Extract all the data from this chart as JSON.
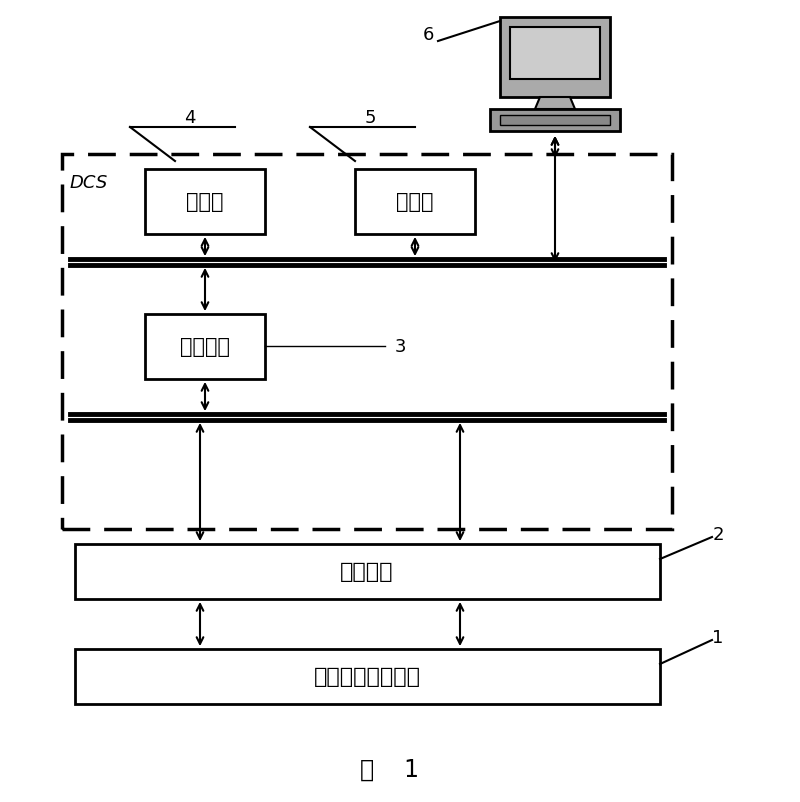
{
  "title": "图    1",
  "bg_color": "#ffffff",
  "label_6": "6",
  "label_5": "5",
  "label_4": "4",
  "label_3": "3",
  "label_2": "2",
  "label_1": "1",
  "dcs_label": "DCS",
  "box1_text": "控制站",
  "box2_text": "数据库",
  "box3_text": "数据接口",
  "inst_text": "智能仪表",
  "proc_text": "丙稳聚合生产过程",
  "comp_monitor_color": "#999999",
  "comp_screen_color": "#bbbbbb",
  "comp_base_color": "#888888"
}
